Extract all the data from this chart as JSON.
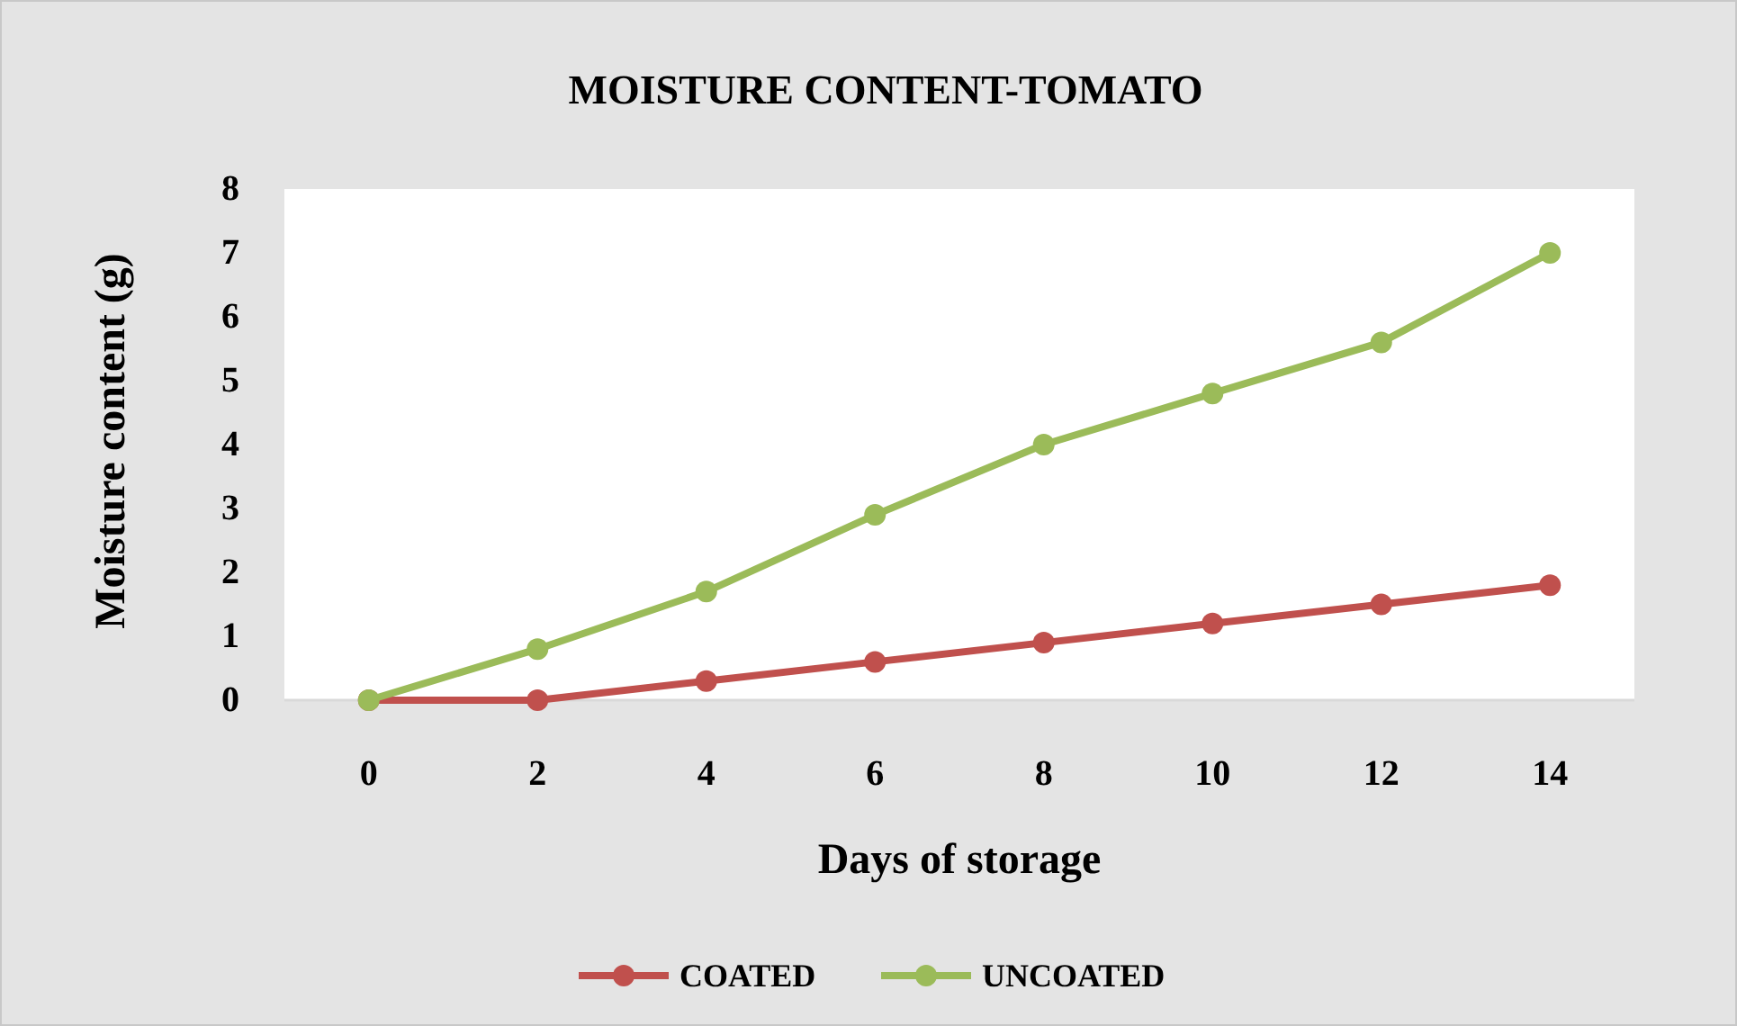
{
  "chart_data": {
    "type": "line",
    "title": "MOISTURE CONTENT-TOMATO",
    "xlabel": "Days of storage",
    "ylabel": "Moisture content (g)",
    "categories": [
      "0",
      "2",
      "4",
      "6",
      "8",
      "10",
      "12",
      "14"
    ],
    "series": [
      {
        "name": "COATED",
        "color": "#c0504d",
        "values": [
          0,
          0,
          0.3,
          0.6,
          0.9,
          1.2,
          1.5,
          1.8
        ]
      },
      {
        "name": "UNCOATED",
        "color": "#9bbb59",
        "values": [
          0,
          0.8,
          1.7,
          2.9,
          4.0,
          4.8,
          5.6,
          7.0
        ]
      }
    ],
    "ylim": [
      0,
      8
    ],
    "yticks": [
      0,
      1,
      2,
      3,
      4,
      5,
      6,
      7,
      8
    ],
    "grid": false,
    "legend": "bottom",
    "marker": "circle",
    "line_style": "solid"
  }
}
